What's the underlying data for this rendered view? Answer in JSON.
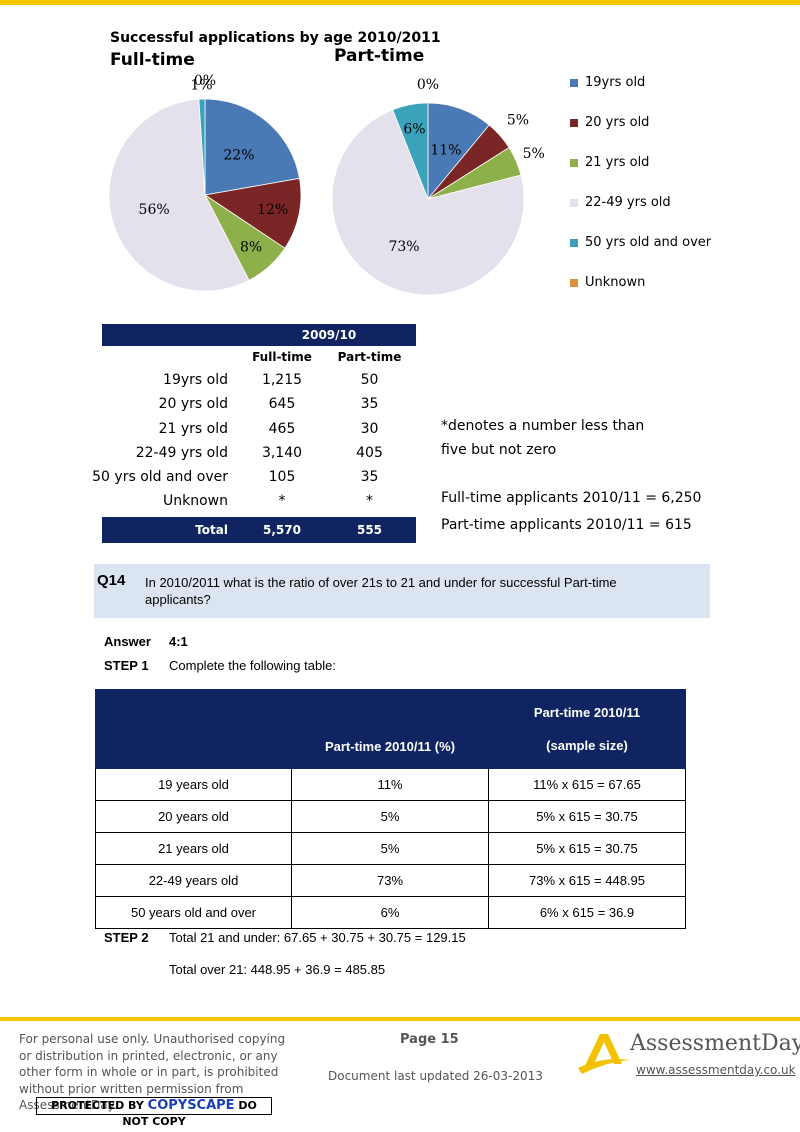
{
  "charts": {
    "title": "Successful applications by age  2010/2011",
    "legend": [
      {
        "label": "19yrs old",
        "color": "#4a7ab5"
      },
      {
        "label": "20 yrs old",
        "color": "#7b2626"
      },
      {
        "label": "21 yrs old",
        "color": "#8db04b"
      },
      {
        "label": "22-49 yrs old",
        "color": "#e4e0ec"
      },
      {
        "label": "50 yrs old and over",
        "color": "#3aa3bb"
      },
      {
        "label": "Unknown",
        "color": "#e08f3c"
      }
    ]
  },
  "chart_data": [
    {
      "type": "pie",
      "title": "Full-time",
      "categories": [
        "19yrs old",
        "20 yrs old",
        "21 yrs old",
        "22-49 yrs old",
        "50 yrs old and over",
        "Unknown"
      ],
      "values": [
        22,
        12,
        8,
        56,
        1,
        0
      ],
      "labels": [
        "22%",
        "12%",
        "8%",
        "56%",
        "1%",
        "0%"
      ]
    },
    {
      "type": "pie",
      "title": "Part-time",
      "categories": [
        "19yrs old",
        "20 yrs old",
        "21 yrs old",
        "22-49 yrs old",
        "50 yrs old and over",
        "Unknown"
      ],
      "values": [
        11,
        5,
        5,
        73,
        6,
        0
      ],
      "labels": [
        "11%",
        "5%",
        "5%",
        "73%",
        "6%",
        "0%"
      ]
    }
  ],
  "table1": {
    "header": "2009/10",
    "columns": [
      "Full-time",
      "Part-time"
    ],
    "rows": [
      {
        "label": "19yrs old",
        "full": "1,215",
        "part": "50"
      },
      {
        "label": "20 yrs old",
        "full": "645",
        "part": "35"
      },
      {
        "label": "21 yrs old",
        "full": "465",
        "part": "30"
      },
      {
        "label": "22-49 yrs old",
        "full": "3,140",
        "part": "405"
      },
      {
        "label": "50 yrs old and over",
        "full": "105",
        "part": "35"
      },
      {
        "label": "Unknown",
        "full": "*",
        "part": "*"
      }
    ],
    "total": {
      "label": "Total",
      "full": "5,570",
      "part": "555"
    }
  },
  "notes": {
    "line1": "*denotes a number less than",
    "line2": "five but not zero",
    "fulltime": "Full-time applicants 2010/11 = 6,250",
    "parttime": "Part-time applicants 2010/11 = 615"
  },
  "question": {
    "number": "Q14",
    "text": "In 2010/2011 what is the ratio of over 21s to 21 and under for successful Part-time applicants?"
  },
  "answer": {
    "label": "Answer",
    "value": "4:1"
  },
  "step1": {
    "label": "STEP 1",
    "text": "Complete the following table:"
  },
  "table2": {
    "headers": [
      "",
      "Part-time 2010/11 (%)",
      "Part-time 2010/11",
      "(sample size)"
    ],
    "rows": [
      [
        "19 years old",
        "11%",
        "11% x 615 = 67.65"
      ],
      [
        "20 years old",
        "5%",
        "5% x 615 = 30.75"
      ],
      [
        "21 years old",
        "5%",
        "5% x 615 = 30.75"
      ],
      [
        "22-49 years old",
        "73%",
        "73% x 615 = 448.95"
      ],
      [
        "50 years old and over",
        "6%",
        "6% x 615 = 36.9"
      ]
    ]
  },
  "step2": {
    "label": "STEP 2",
    "line1": "Total 21 and under: 67.65 + 30.75 + 30.75 = 129.15",
    "line2": "Total over 21: 448.95 + 36.9 = 485.85"
  },
  "footer": {
    "disclaimer": "For personal use only. Unauthorised copying or distribution in printed, electronic, or any other form in whole or in part, is prohibited without prior written permission from AssessmentDay.",
    "copyscape_prefix": "PROTECTED BY",
    "copyscape_brand": "COPYSCAPE",
    "copyscape_suffix": "DO NOT COPY",
    "page": "Page 15",
    "updated": "Document last updated 26-03-2013",
    "logo": "AssessmentDay",
    "url": "www.assessmentday.co.uk"
  }
}
